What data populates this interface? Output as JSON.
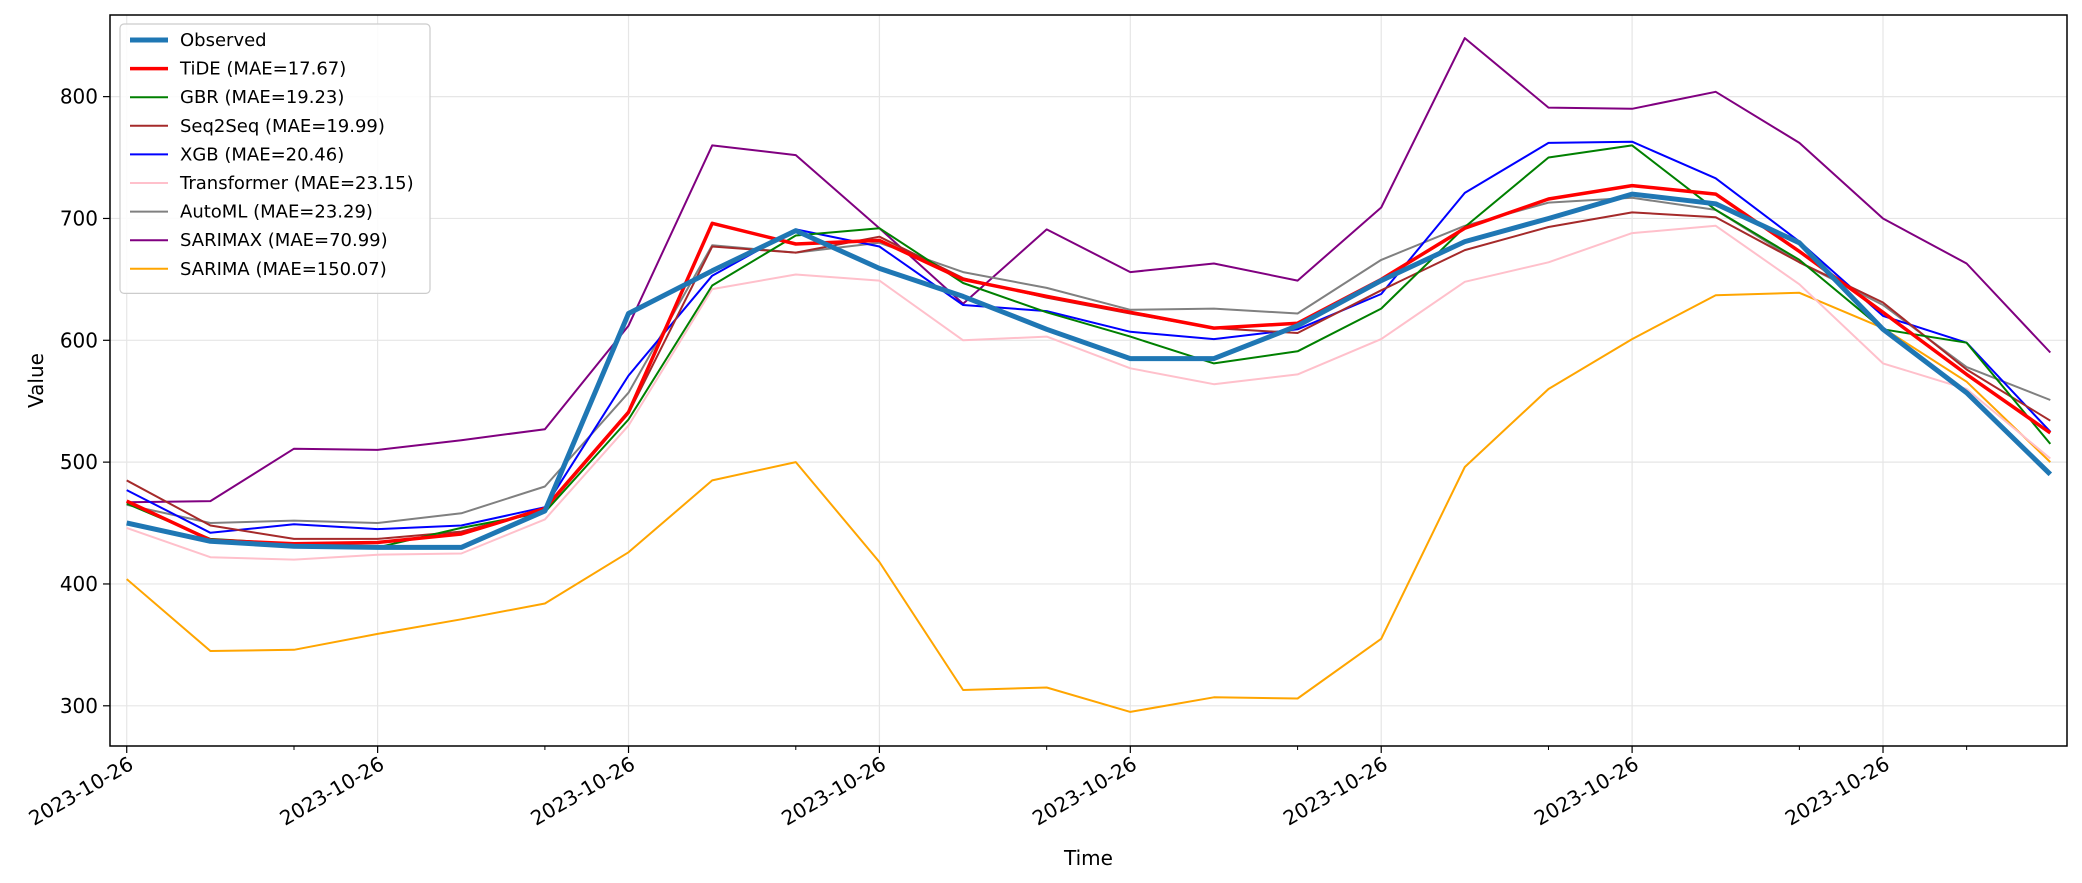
{
  "chart_data": {
    "type": "line",
    "title": "",
    "xlabel": "Time",
    "ylabel": "Value",
    "ylim": [
      267,
      867
    ],
    "yticks": [
      300,
      400,
      500,
      600,
      700,
      800
    ],
    "xlim": [
      -0.2,
      23.2
    ],
    "major_ticks": [
      0,
      3,
      6,
      9,
      12,
      15,
      18,
      21
    ],
    "minor_ticks": [
      2,
      5,
      8,
      11,
      14,
      17,
      20,
      22
    ],
    "x_tick_labels": [
      "2023-10-26",
      "2023-10-26",
      "2023-10-26",
      "2023-10-26",
      "2023-10-26",
      "2023-10-26",
      "2023-10-26",
      "2023-10-26"
    ],
    "grid": true,
    "legend_position": "upper-left",
    "series": [
      {
        "name": "Observed",
        "color": "#1f77b4",
        "width": 5,
        "values": [
          450,
          435,
          431,
          430,
          430,
          460,
          622,
          657,
          690,
          659,
          636,
          609,
          585,
          585,
          612,
          649,
          681,
          700,
          720,
          712,
          680,
          609,
          557,
          490
        ]
      },
      {
        "name": "TiDE (MAE=17.67)",
        "color": "#ff0000",
        "width": 3.5,
        "values": [
          468,
          436,
          433,
          434,
          441,
          462,
          541,
          696,
          679,
          682,
          650,
          636,
          623,
          610,
          614,
          650,
          692,
          716,
          727,
          720,
          673,
          623,
          572,
          524
        ]
      },
      {
        "name": "GBR (MAE=19.23)",
        "color": "#008000",
        "width": 2,
        "values": [
          466,
          437,
          433,
          430,
          446,
          459,
          535,
          645,
          686,
          692,
          647,
          623,
          603,
          581,
          591,
          626,
          693,
          750,
          760,
          707,
          666,
          609,
          598,
          515
        ]
      },
      {
        "name": "Seq2Seq (MAE=19.99)",
        "color": "#a52a2a",
        "width": 2,
        "values": [
          485,
          448,
          437,
          437,
          443,
          461,
          540,
          677,
          672,
          685,
          651,
          635,
          622,
          610,
          606,
          641,
          674,
          693,
          705,
          701,
          664,
          631,
          576,
          534
        ]
      },
      {
        "name": "XGB (MAE=20.46)",
        "color": "#0000ff",
        "width": 2,
        "values": [
          477,
          442,
          449,
          445,
          448,
          463,
          571,
          653,
          691,
          677,
          629,
          624,
          607,
          601,
          609,
          638,
          721,
          762,
          763,
          733,
          681,
          620,
          598,
          525
        ]
      },
      {
        "name": "Transformer (MAE=23.15)",
        "color": "#ffc0cb",
        "width": 2,
        "values": [
          446,
          422,
          420,
          424,
          425,
          453,
          530,
          642,
          654,
          649,
          600,
          603,
          577,
          564,
          572,
          601,
          648,
          664,
          688,
          694,
          646,
          581,
          560,
          503
        ]
      },
      {
        "name": "AutoML (MAE=23.29)",
        "color": "#808080",
        "width": 2,
        "values": [
          465,
          450,
          452,
          450,
          458,
          480,
          557,
          678,
          672,
          680,
          656,
          643,
          625,
          626,
          622,
          666,
          694,
          713,
          717,
          707,
          664,
          629,
          578,
          551
        ]
      },
      {
        "name": "SARIMAX (MAE=70.99)",
        "color": "#800080",
        "width": 2,
        "values": [
          467,
          468,
          511,
          510,
          518,
          527,
          612,
          760,
          752,
          692,
          630,
          691,
          656,
          663,
          649,
          709,
          848,
          791,
          790,
          804,
          762,
          700,
          663,
          590
        ]
      },
      {
        "name": "SARIMA (MAE=150.07)",
        "color": "#ffa500",
        "width": 2,
        "values": [
          404,
          345,
          346,
          359,
          371,
          384,
          426,
          485,
          500,
          418,
          313,
          315,
          295,
          307,
          306,
          355,
          496,
          560,
          601,
          637,
          639,
          610,
          566,
          500
        ]
      }
    ]
  }
}
